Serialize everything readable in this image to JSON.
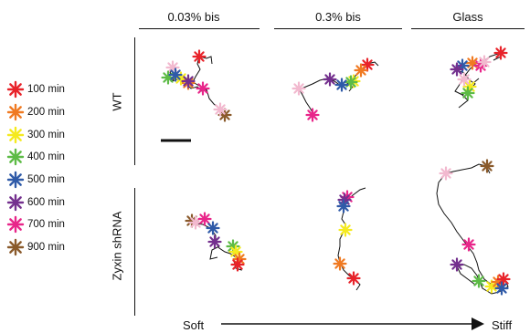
{
  "columns": [
    "0.03% bis",
    "0.3% bis",
    "Glass"
  ],
  "rows": [
    "WT",
    "Zyxin shRNA"
  ],
  "legend": [
    {
      "label": "100 min",
      "color": "#e8232a"
    },
    {
      "label": "200 min",
      "color": "#f07a22"
    },
    {
      "label": "300 min",
      "color": "#f5ea1f"
    },
    {
      "label": "400 min",
      "color": "#5dbb46"
    },
    {
      "label": "500 min",
      "color": "#2f5aa8"
    },
    {
      "label": "600 min",
      "color": "#74308e"
    },
    {
      "label": "700 min",
      "color": "#e8268a"
    },
    {
      "label": "900 min",
      "color": "#8a5a2b"
    }
  ],
  "first_point_color": "#f2b9cf",
  "axis": {
    "left": "Soft",
    "right": "Stiff"
  }
}
